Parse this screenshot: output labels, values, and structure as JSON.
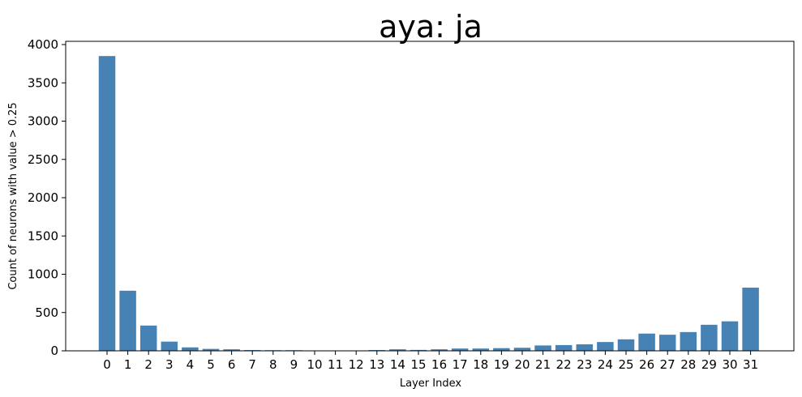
{
  "chart_data": {
    "type": "bar",
    "title": "aya: ja",
    "xlabel": "Layer Index",
    "ylabel": "Count of neurons with value > 0.25",
    "categories": [
      "0",
      "1",
      "2",
      "3",
      "4",
      "5",
      "6",
      "7",
      "8",
      "9",
      "10",
      "11",
      "12",
      "13",
      "14",
      "15",
      "16",
      "17",
      "18",
      "19",
      "20",
      "21",
      "22",
      "23",
      "24",
      "25",
      "26",
      "27",
      "28",
      "29",
      "30",
      "31"
    ],
    "values": [
      3850,
      785,
      330,
      120,
      45,
      25,
      20,
      10,
      8,
      8,
      5,
      2,
      3,
      10,
      20,
      12,
      20,
      30,
      30,
      35,
      40,
      70,
      75,
      85,
      115,
      150,
      225,
      210,
      245,
      340,
      385,
      825
    ],
    "ylim": [
      0,
      4000
    ],
    "yticks": [
      0,
      500,
      1000,
      1500,
      2000,
      2500,
      3000,
      3500,
      4000
    ],
    "bar_color": "#4682b4",
    "grid": false,
    "legend": false
  }
}
